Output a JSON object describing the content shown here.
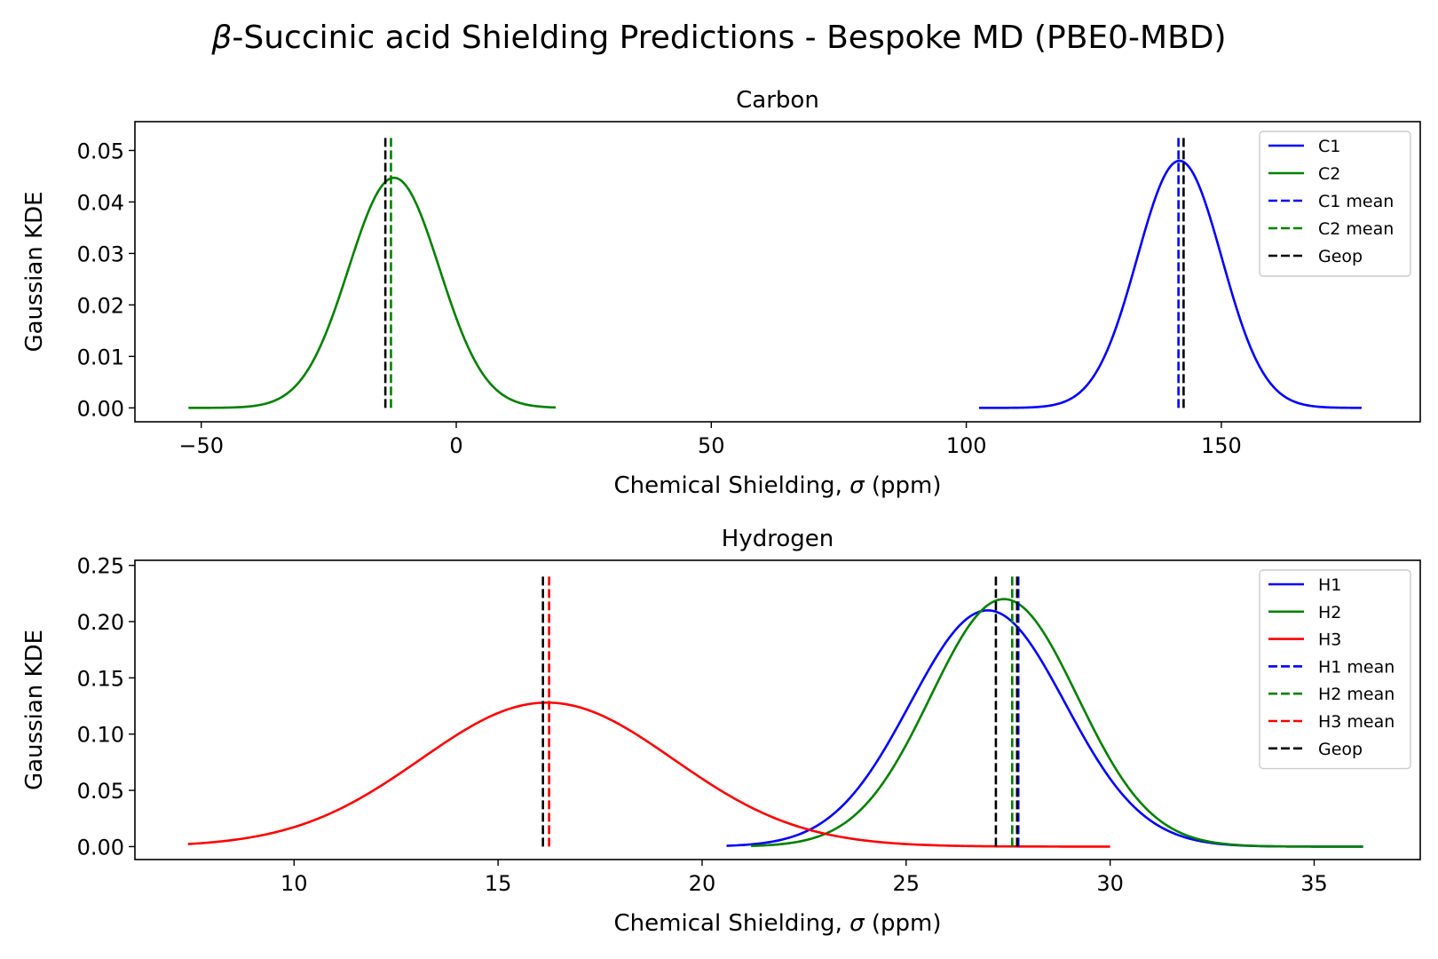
{
  "figure": {
    "title_prefix": "β",
    "title_rest": "-Succinic acid Shielding Predictions - Bespoke MD (PBE0-MBD)"
  },
  "chart_data": [
    {
      "type": "line",
      "title": "Carbon",
      "xlabel_text": "Chemical Shielding, ",
      "xlabel_symbol": "σ",
      "xlabel_unit": " (ppm)",
      "ylabel": "Gaussian KDE",
      "xlim": [
        -63,
        189
      ],
      "ylim": [
        -0.0027,
        0.0556
      ],
      "xticks": [
        -50,
        0,
        50,
        100,
        150
      ],
      "xtick_labels": [
        "−50",
        "0",
        "50",
        "100",
        "150"
      ],
      "yticks": [
        0.0,
        0.01,
        0.02,
        0.03,
        0.04,
        0.05
      ],
      "ytick_labels": [
        "0.00",
        "0.01",
        "0.02",
        "0.03",
        "0.04",
        "0.05"
      ],
      "grid": false,
      "legend_position": "top-right",
      "curves": [
        {
          "name": "C1",
          "color": "#0000ff",
          "peak_x": 141.8,
          "peak_y": 0.048,
          "sd": 8.3,
          "x_range": [
            102.5,
            177.5
          ]
        },
        {
          "name": "C2",
          "color": "#008000",
          "peak_x": -12.2,
          "peak_y": 0.0447,
          "sd": 8.9,
          "x_range": [
            -52.5,
            19.5
          ]
        }
      ],
      "vlines": [
        {
          "name": "C1 mean",
          "color": "#0000ff",
          "x": 141.6,
          "y_range": [
            0.0,
            0.0528
          ]
        },
        {
          "name": "C2 mean",
          "color": "#008000",
          "x": -12.8,
          "y_range": [
            0.0,
            0.0528
          ]
        },
        {
          "name": "Geop",
          "color": "#000000",
          "x": -13.9,
          "y_range": [
            0.0,
            0.0528
          ]
        },
        {
          "name": "Geop",
          "color": "#000000",
          "x": 142.6,
          "y_range": [
            0.0,
            0.0528
          ]
        }
      ],
      "legend": [
        {
          "label": "C1",
          "color": "#0000ff",
          "style": "solid"
        },
        {
          "label": "C2",
          "color": "#008000",
          "style": "solid"
        },
        {
          "label": "C1 mean",
          "color": "#0000ff",
          "style": "dashed"
        },
        {
          "label": "C2 mean",
          "color": "#008000",
          "style": "dashed"
        },
        {
          "label": " Geop",
          "color": "#000000",
          "style": "dashed"
        }
      ]
    },
    {
      "type": "line",
      "title": "Hydrogen",
      "xlabel_text": "Chemical Shielding, ",
      "xlabel_symbol": "σ",
      "xlabel_unit": " (ppm)",
      "ylabel": "Gaussian KDE",
      "xlim": [
        6.1,
        37.6
      ],
      "ylim": [
        -0.0115,
        0.2545
      ],
      "xticks": [
        10,
        15,
        20,
        25,
        30,
        35
      ],
      "xtick_labels": [
        "10",
        "15",
        "20",
        "25",
        "30",
        "35"
      ],
      "yticks": [
        0.0,
        0.05,
        0.1,
        0.15,
        0.2,
        0.25
      ],
      "ytick_labels": [
        "0.00",
        "0.05",
        "0.10",
        "0.15",
        "0.20",
        "0.25"
      ],
      "grid": false,
      "legend_position": "top-right",
      "curves": [
        {
          "name": "H1",
          "color": "#0000ff",
          "peak_x": 27.0,
          "peak_y": 0.21,
          "sd": 1.9,
          "x_range": [
            20.6,
            36.2
          ]
        },
        {
          "name": "H2",
          "color": "#008000",
          "peak_x": 27.4,
          "peak_y": 0.22,
          "sd": 1.8,
          "x_range": [
            21.2,
            36.2
          ]
        },
        {
          "name": "H3",
          "color": "#ff0000",
          "peak_x": 16.2,
          "peak_y": 0.128,
          "sd": 3.1,
          "x_range": [
            7.4,
            30.0
          ]
        }
      ],
      "vlines": [
        {
          "name": "H1 mean",
          "color": "#0000ff",
          "x": 27.75,
          "y_range": [
            0.0,
            0.242
          ]
        },
        {
          "name": "H2 mean",
          "color": "#008000",
          "x": 27.6,
          "y_range": [
            0.0,
            0.242
          ]
        },
        {
          "name": "H3 mean",
          "color": "#ff0000",
          "x": 16.25,
          "y_range": [
            0.0,
            0.242
          ]
        },
        {
          "name": "Geop",
          "color": "#000000",
          "x": 16.1,
          "y_range": [
            0.0,
            0.242
          ]
        },
        {
          "name": "Geop",
          "color": "#000000",
          "x": 27.2,
          "y_range": [
            0.0,
            0.242
          ]
        },
        {
          "name": "Geop",
          "color": "#000000",
          "x": 27.72,
          "y_range": [
            0.0,
            0.242
          ]
        }
      ],
      "legend": [
        {
          "label": "H1",
          "color": "#0000ff",
          "style": "solid"
        },
        {
          "label": "H2",
          "color": "#008000",
          "style": "solid"
        },
        {
          "label": "H3",
          "color": "#ff0000",
          "style": "solid"
        },
        {
          "label": "H1 mean",
          "color": "#0000ff",
          "style": "dashed"
        },
        {
          "label": "H2 mean",
          "color": "#008000",
          "style": "dashed"
        },
        {
          "label": "H3 mean",
          "color": "#ff0000",
          "style": "dashed"
        },
        {
          "label": "Geop",
          "color": "#000000",
          "style": "dashed"
        }
      ]
    }
  ]
}
